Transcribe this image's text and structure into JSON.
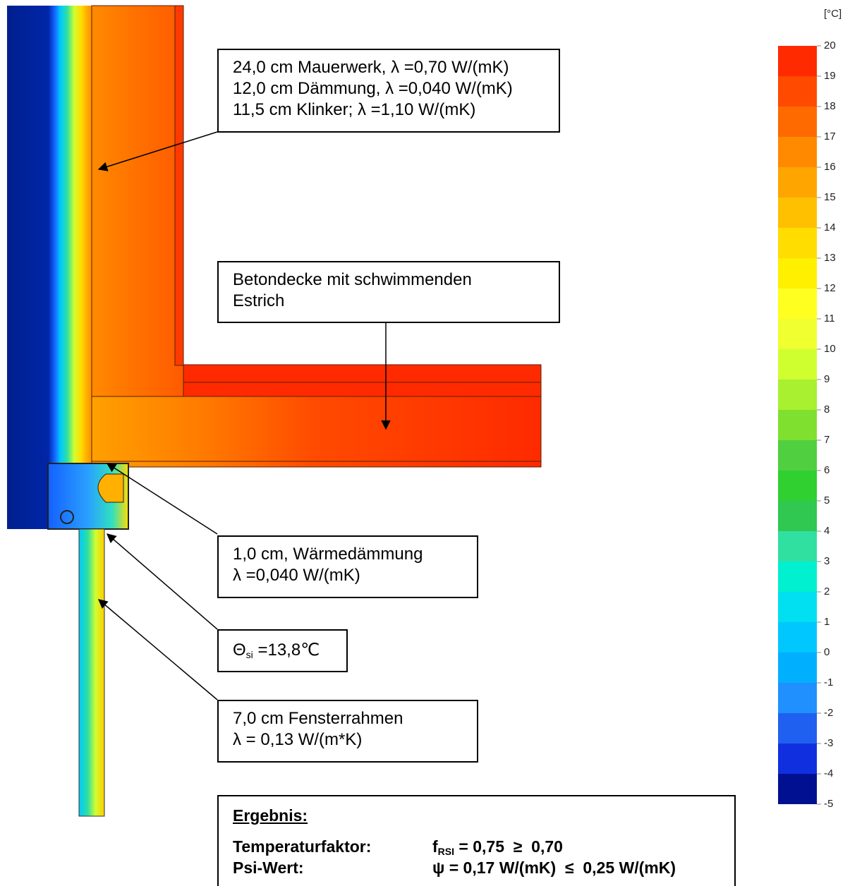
{
  "scale": {
    "unit": "[°C]",
    "ticks": [
      20,
      19,
      18,
      17,
      16,
      15,
      14,
      13,
      12,
      11,
      10,
      9,
      8,
      7,
      6,
      5,
      4,
      3,
      2,
      1,
      0,
      -1,
      -2,
      -3,
      -4,
      -5
    ]
  },
  "callouts": {
    "wall": [
      "24,0 cm Mauerwerk, λ =0,70 W/(mK)",
      "12,0 cm Dämmung, λ =0,040 W/(mK)",
      "11,5 cm Klinker; λ =1,10 W/(mK)"
    ],
    "slab": [
      "Betondecke mit schwimmenden",
      "Estrich"
    ],
    "insulation": [
      "1,0 cm, Wärmedämmung",
      "λ =0,040 W/(mK)"
    ],
    "surface_temp": {
      "symbol": "Θ",
      "subscript": "si",
      "value": "=13,8℃"
    },
    "frame": [
      "7,0 cm Fensterrahmen",
      "λ = 0,13 W/(m*K)"
    ]
  },
  "result": {
    "title": "Ergebnis:",
    "rows": [
      {
        "label": "Temperaturfaktor:",
        "symbol": "f",
        "subscript": "RSI",
        "value": "= 0,75  ≥  0,70"
      },
      {
        "label": "Psi-Wert:",
        "value": "ψ = 0,17 W/(mK)  ≤  0,25 W/(mK)"
      }
    ]
  }
}
